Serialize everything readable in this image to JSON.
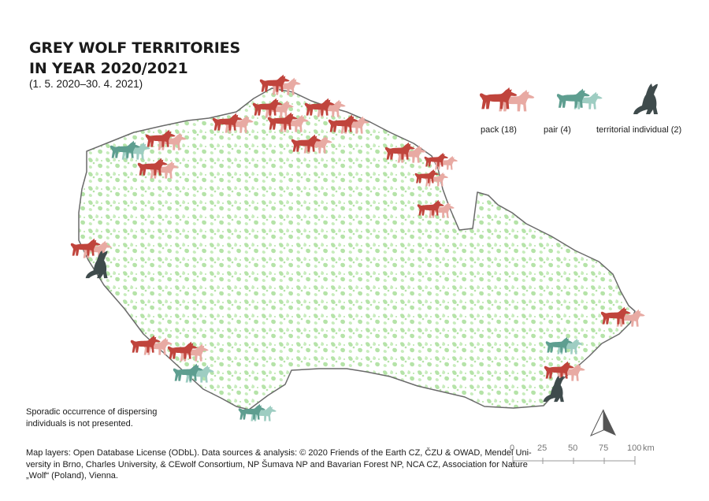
{
  "title": {
    "line1": "GREY WOLF TERRITORIES",
    "line2": "IN YEAR  2020/2021",
    "period": "(1. 5. 2020–30. 4. 2021)"
  },
  "legend": [
    {
      "key": "pack",
      "label": "pack (18)",
      "color": "#c0443c",
      "color_secondary": "#e8aaa3"
    },
    {
      "key": "pair",
      "label": "pair (4)",
      "color": "#5e9e90",
      "color_secondary": "#9ecdc2"
    },
    {
      "key": "individual",
      "label": "territorial individual (2)",
      "color": "#3f4b4c"
    }
  ],
  "colors": {
    "country_fill": "#ffffff",
    "country_border": "#6a6a6a",
    "forest_green": "#b5e3a8"
  },
  "territories": {
    "pack": 18,
    "pair": 4,
    "individual": 2
  },
  "note": {
    "line1": "Sporadic occurrence of dispersing",
    "line2": "individuals is not presented."
  },
  "credits": {
    "line1": "Map layers: Open Database License (ODbL). Data sources & analysis: © 2020 Friends of the Earth CZ, ČZU & OWAD, Mendel Uni-",
    "line2": "versity in Brno, Charles University, & CEwolf Consortium, NP Šumava NP and Bavarian Forest NP, NCA CZ, Association for Nature",
    "line3": "„Wolf“ (Poland), Vienna."
  },
  "scale_bar": {
    "ticks": [
      "0",
      "25",
      "50",
      "75",
      "100"
    ],
    "unit": "km"
  },
  "north_arrow_icon": "north-arrow-icon"
}
